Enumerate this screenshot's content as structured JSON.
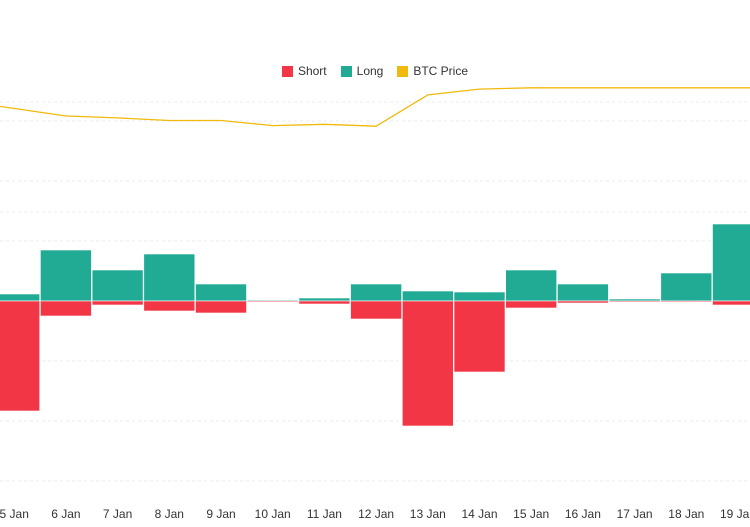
{
  "legend": {
    "short_label": "Short",
    "long_label": "Long",
    "price_label": "BTC Price"
  },
  "colors": {
    "short": "#f23645",
    "long": "#22ab94",
    "price": "#f0b90b",
    "grid": "#ebebeb"
  },
  "chart_data": {
    "type": "bar",
    "title": "",
    "xlabel": "",
    "ylabel": "",
    "grid": true,
    "legend_position": "top-center",
    "categories": [
      "5 Jan",
      "6 Jan",
      "7 Jan",
      "8 Jan",
      "9 Jan",
      "10 Jan",
      "11 Jan",
      "12 Jan",
      "13 Jan",
      "14 Jan",
      "15 Jan",
      "16 Jan",
      "17 Jan",
      "18 Jan",
      "19 Jan"
    ],
    "ylim": [
      -100,
      100
    ],
    "series": [
      {
        "name": "Long",
        "values": [
          3.5,
          25.5,
          15.5,
          23.5,
          8.5,
          0.5,
          1.5,
          8.5,
          5,
          4.5,
          15.5,
          8.5,
          1,
          14,
          38.5
        ]
      },
      {
        "name": "Short",
        "values": [
          -55,
          -7.5,
          -2,
          -5,
          -6,
          -0.5,
          -1.5,
          -9,
          -62.5,
          -35.5,
          -3.5,
          -1,
          -0.5,
          -0.5,
          -2
        ]
      },
      {
        "name": "BTC Price",
        "values": [
          94000,
          92500,
          92200,
          91800,
          91800,
          91000,
          91200,
          90900,
          95800,
          96700,
          96900,
          96900,
          96900,
          96900,
          96900
        ],
        "range": [
          85000,
          100000
        ]
      }
    ]
  }
}
